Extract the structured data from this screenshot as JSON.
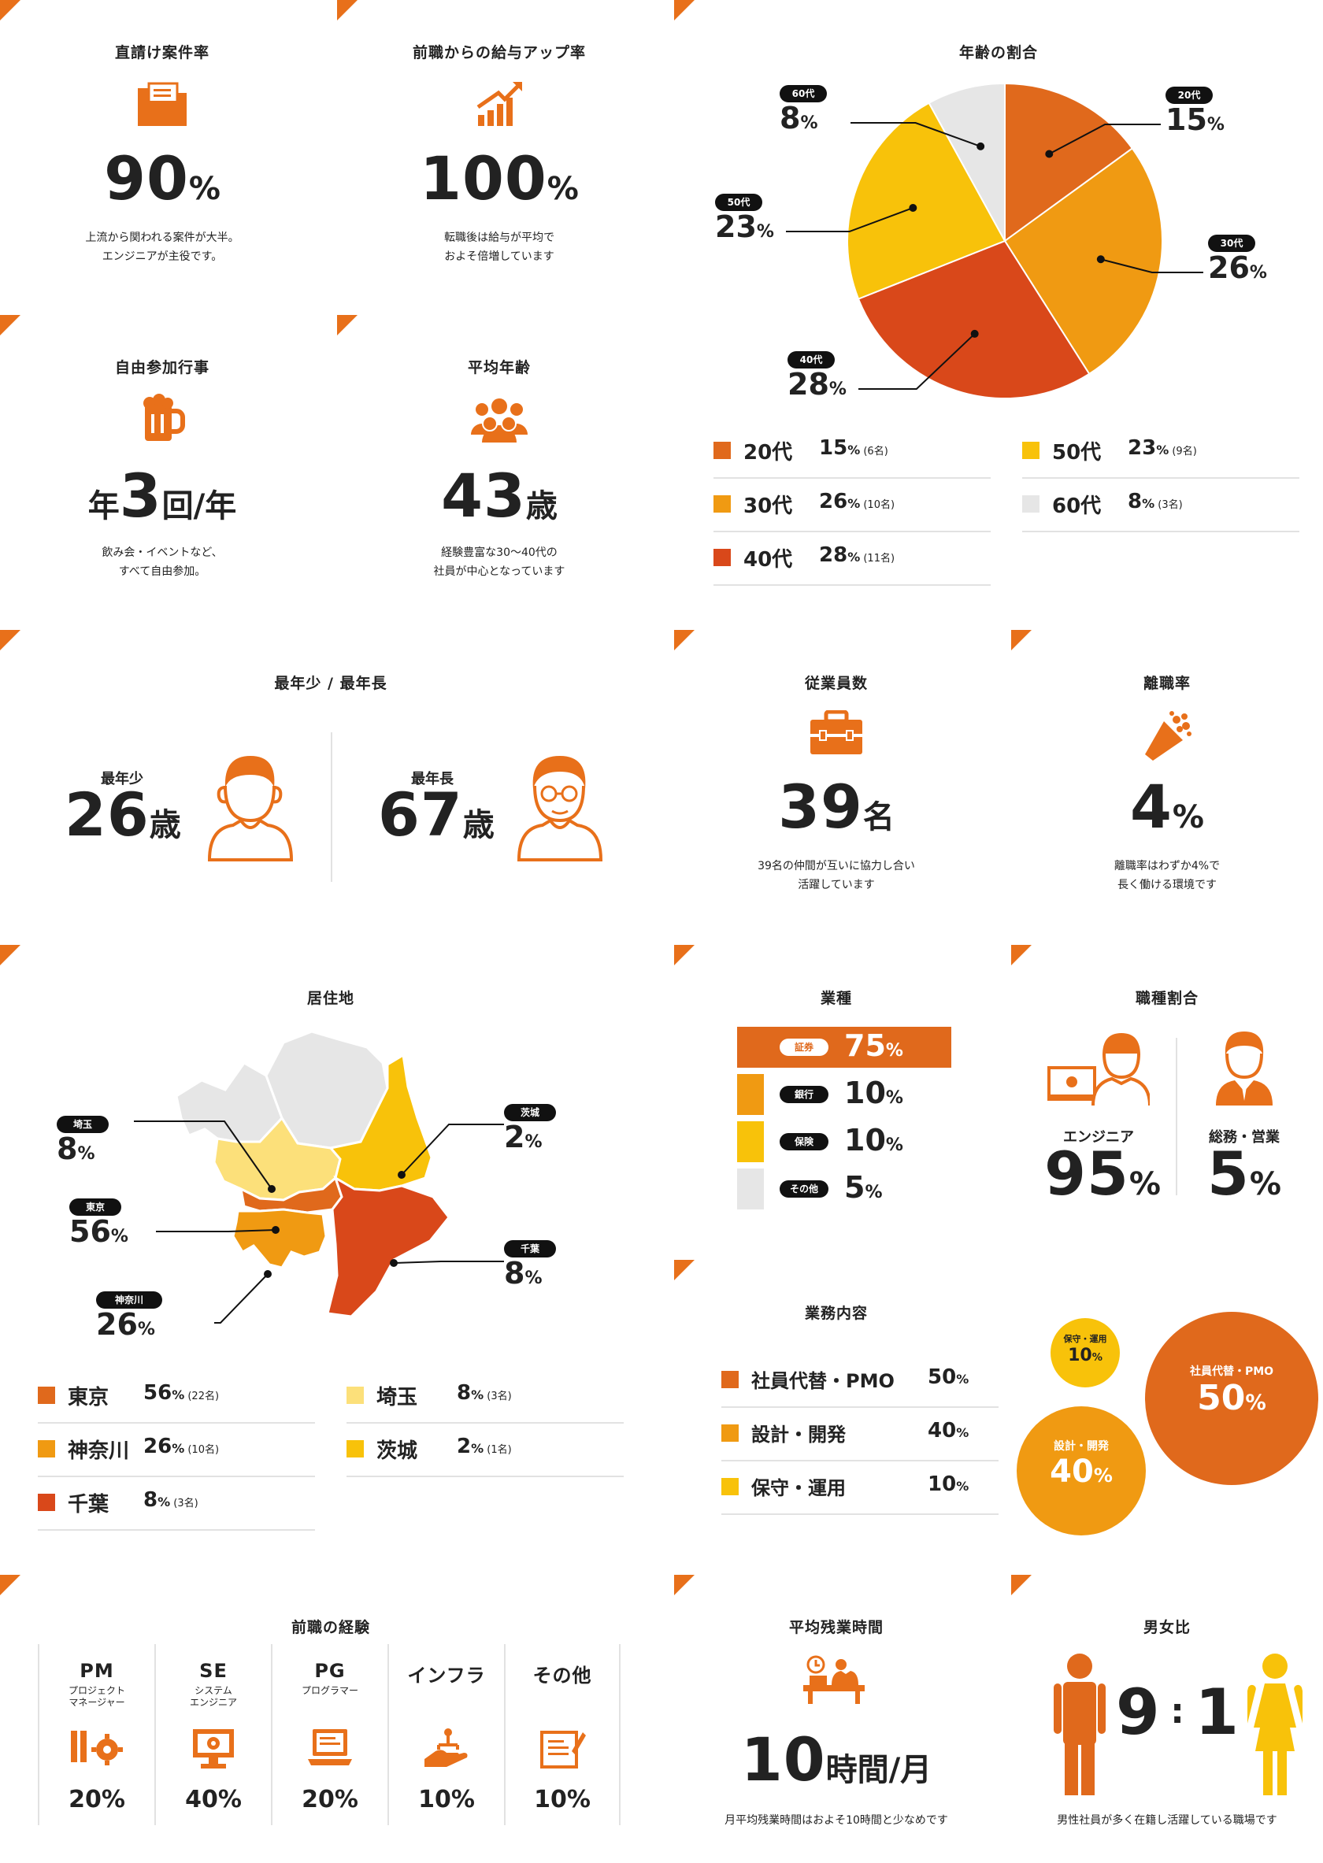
{
  "colors": {
    "accent": "#e8701a",
    "red": "#d9481a",
    "orange": "#f09a12",
    "yellow": "#f8c20a",
    "gray": "#e6e6e6"
  },
  "direct": {
    "title": "直請け案件率",
    "value": "90",
    "unit": "%",
    "desc1": "上流から関われる案件が大半。",
    "desc2": "エンジニアが主役です。",
    "icon": "folder-icon"
  },
  "salary": {
    "title": "前職からの給与アップ率",
    "value": "100",
    "unit": "%",
    "desc1": "転職後は給与が平均で",
    "desc2": "およそ倍増しています",
    "icon": "chart-up-icon"
  },
  "events": {
    "title": "自由参加行事",
    "pre": "年",
    "value": "3",
    "unit": "回/年",
    "desc1": "飲み会・イベントなど、",
    "desc2": "すべて自由参加。",
    "icon": "beer-icon"
  },
  "avg_age": {
    "title": "平均年齢",
    "value": "43",
    "unit": "歳",
    "desc1": "経験豊富な30〜40代の",
    "desc2": "社員が中心となっています",
    "icon": "group-icon"
  },
  "minmax": {
    "title": "最年少 / 最年長",
    "young_label": "最年少",
    "young_value": "26",
    "old_label": "最年長",
    "old_value": "67",
    "unit": "歳"
  },
  "employees": {
    "title": "従業員数",
    "value": "39",
    "unit": "名",
    "desc1": "39名の仲間が互いに協力し合い",
    "desc2": "活躍しています",
    "icon": "toolbox-icon"
  },
  "turnover": {
    "title": "離職率",
    "value": "4",
    "unit": "%",
    "desc1": "離職率はわずか4%で",
    "desc2": "長く働ける環境です",
    "icon": "bouquet-icon"
  },
  "age_chart": {
    "title": "年齢の割合",
    "slices": [
      {
        "label": "20代",
        "value": 15,
        "count": "(6名)",
        "color": "#e0691c"
      },
      {
        "label": "30代",
        "value": 26,
        "count": "(10名)",
        "color": "#f09a12"
      },
      {
        "label": "40代",
        "value": 28,
        "count": "(11名)",
        "color": "#d9481a"
      },
      {
        "label": "50代",
        "value": 23,
        "count": "(9名)",
        "color": "#f8c20a"
      },
      {
        "label": "60代",
        "value": 8,
        "count": "(3名)",
        "color": "#e6e6e6"
      }
    ],
    "unit": "%"
  },
  "residence": {
    "title": "居住地",
    "items": [
      {
        "label": "東京",
        "value": 56,
        "count": "(22名)",
        "color": "#e0691c"
      },
      {
        "label": "神奈川",
        "value": 26,
        "count": "(10名)",
        "color": "#f09a12"
      },
      {
        "label": "千葉",
        "value": 8,
        "count": "(3名)",
        "color": "#d9481a"
      },
      {
        "label": "埼玉",
        "value": 8,
        "count": "(3名)",
        "color": "#fce07a"
      },
      {
        "label": "茨城",
        "value": 2,
        "count": "(1名)",
        "color": "#f8c20a"
      }
    ],
    "unit": "%"
  },
  "industry": {
    "title": "業種",
    "items": [
      {
        "label": "証券",
        "value": 75,
        "color": "#e0691c"
      },
      {
        "label": "銀行",
        "value": 10,
        "color": "#f09a12"
      },
      {
        "label": "保険",
        "value": 10,
        "color": "#f8c20a"
      },
      {
        "label": "その他",
        "value": 5,
        "color": "#e6e6e6"
      }
    ],
    "unit": "%"
  },
  "job_ratio": {
    "title": "職種割合",
    "eng_label": "エンジニア",
    "eng_value": "95",
    "sales_label": "総務・営業",
    "sales_value": "5",
    "unit": "%"
  },
  "work": {
    "title": "業務内容",
    "items": [
      {
        "label": "社員代替・PMO",
        "value": 50,
        "color": "#e0691c"
      },
      {
        "label": "設計・開発",
        "value": 40,
        "color": "#f09a12"
      },
      {
        "label": "保守・運用",
        "value": 10,
        "color": "#f8c20a"
      }
    ],
    "unit": "%"
  },
  "experience": {
    "title": "前職の経験",
    "items": [
      {
        "label": "PM",
        "sub1": "プロジェクト",
        "sub2": "マネージャー",
        "value": "20",
        "icon": "pm-gear-icon"
      },
      {
        "label": "SE",
        "sub1": "システム",
        "sub2": "エンジニア",
        "value": "40",
        "icon": "monitor-gear-icon"
      },
      {
        "label": "PG",
        "sub1": "プログラマー",
        "sub2": "",
        "value": "20",
        "icon": "laptop-icon"
      },
      {
        "label": "インフラ",
        "sub1": "",
        "sub2": "",
        "value": "10",
        "icon": "hand-network-icon"
      },
      {
        "label": "その他",
        "sub1": "",
        "sub2": "",
        "value": "10",
        "icon": "document-icon"
      }
    ],
    "unit": "%"
  },
  "overtime": {
    "title": "平均残業時間",
    "value": "10",
    "unit": "時間/月",
    "desc": "月平均残業時間はおよそ10時間と少なめです",
    "icon": "desk-clock-icon"
  },
  "gender": {
    "title": "男女比",
    "male": "9",
    "colon": ":",
    "female": "1",
    "desc": "男性社員が多く在籍し活躍している職場です"
  }
}
